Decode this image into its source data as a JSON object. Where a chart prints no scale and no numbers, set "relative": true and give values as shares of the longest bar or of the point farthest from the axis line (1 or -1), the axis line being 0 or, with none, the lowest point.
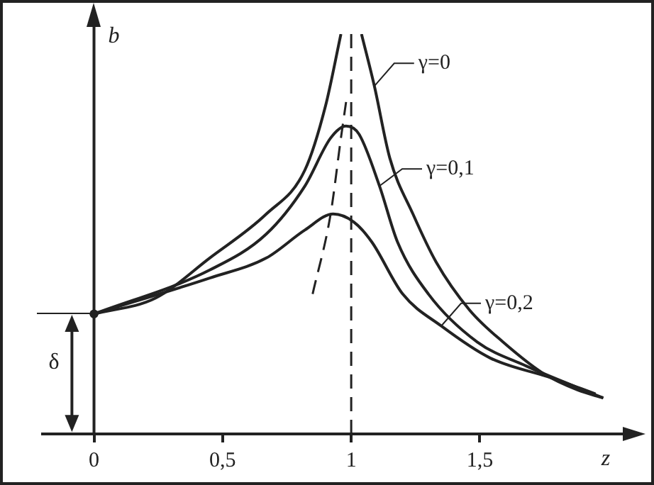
{
  "chart_data": {
    "type": "line",
    "relative": true,
    "xlabel": "z",
    "ylabel": "b",
    "xlim": [
      -0.2,
      2.1
    ],
    "xticks": [
      0,
      {
        "value": 0.5,
        "label": "0,5"
      },
      1,
      {
        "value": 1.5,
        "label": "1,5"
      }
    ],
    "grid": false,
    "legend": "right",
    "marker": "none",
    "series": [
      {
        "name": "γ=0",
        "color": "#222222",
        "x": [
          0,
          0.24,
          0.45,
          0.67,
          0.82,
          0.9,
          0.96,
          1.0,
          1.04,
          1.09,
          1.15,
          1.24,
          1.33,
          1.46,
          1.59,
          1.75,
          1.88,
          1.98
        ],
        "values": [
          0.3,
          0.34,
          0.44,
          0.55,
          0.66,
          0.82,
          1.0,
          null,
          1.0,
          0.87,
          0.69,
          0.55,
          0.43,
          0.31,
          0.23,
          0.15,
          0.11,
          0.09
        ]
      },
      {
        "name": "γ=0,1",
        "color": "#222222",
        "x": [
          0,
          0.45,
          0.67,
          0.82,
          0.92,
          0.98,
          1.03,
          1.11,
          1.18,
          1.3,
          1.49,
          1.68,
          1.98
        ],
        "values": [
          0.3,
          0.41,
          0.5,
          0.62,
          0.74,
          0.77,
          0.75,
          0.62,
          0.48,
          0.35,
          0.23,
          0.17,
          0.09
        ]
      },
      {
        "name": "γ=0,2",
        "color": "#222222",
        "x": [
          0,
          0.45,
          0.67,
          0.82,
          0.93,
          1.01,
          1.08,
          1.2,
          1.35,
          1.54,
          1.78,
          1.95
        ],
        "values": [
          0.3,
          0.39,
          0.44,
          0.51,
          0.55,
          0.53,
          0.48,
          0.35,
          0.27,
          0.19,
          0.14,
          0.1
        ]
      },
      {
        "color": "#222222",
        "line_style": "dashed",
        "x": [
          0.85,
          0.92,
          0.96,
          0.98
        ],
        "values": [
          0.35,
          0.55,
          0.74,
          0.83
        ]
      }
    ],
    "ref_lines": [
      {
        "axis": "x",
        "value": 1,
        "line_style": "dashed",
        "color": "#222222"
      }
    ],
    "annotations": [
      "δ"
    ]
  }
}
